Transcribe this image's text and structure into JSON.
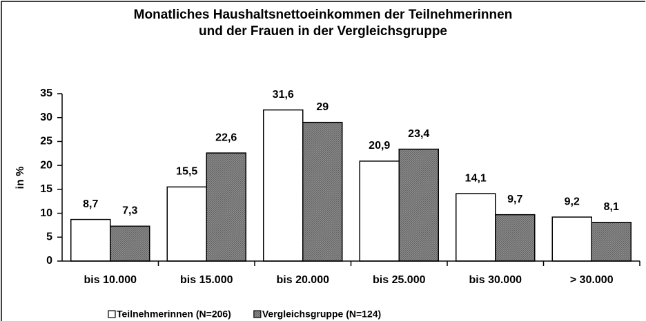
{
  "chart_data": {
    "type": "bar",
    "title": [
      "Monatliches Haushaltsnettoeinkommen der Teilnehmerinnen",
      "und der Frauen in der Vergleichsgruppe"
    ],
    "y_label": "in %",
    "categories": [
      "bis 10.000",
      "bis 15.000",
      "bis 20.000",
      "bis 25.000",
      "bis 30.000",
      "> 30.000"
    ],
    "series": [
      {
        "name": "Teilnehmerinnen (N=206)",
        "color": "#ffffff",
        "values": [
          8.7,
          15.5,
          31.6,
          20.9,
          14.1,
          9.2
        ],
        "value_labels": [
          "8,7",
          "15,5",
          "31,6",
          "20,9",
          "14,1",
          "9,2"
        ]
      },
      {
        "name": "Vergleichsgruppe (N=124)",
        "color": "#8c8c8c",
        "values": [
          7.3,
          22.6,
          29,
          23.4,
          9.7,
          8.1
        ],
        "value_labels": [
          "7,3",
          "22,6",
          "29",
          "23,4",
          "9,7",
          "8,1"
        ]
      }
    ],
    "ylim": [
      0,
      35
    ],
    "yticks": [
      0,
      5,
      10,
      15,
      20,
      25,
      30,
      35
    ],
    "grid": false,
    "legend": "bottom"
  }
}
